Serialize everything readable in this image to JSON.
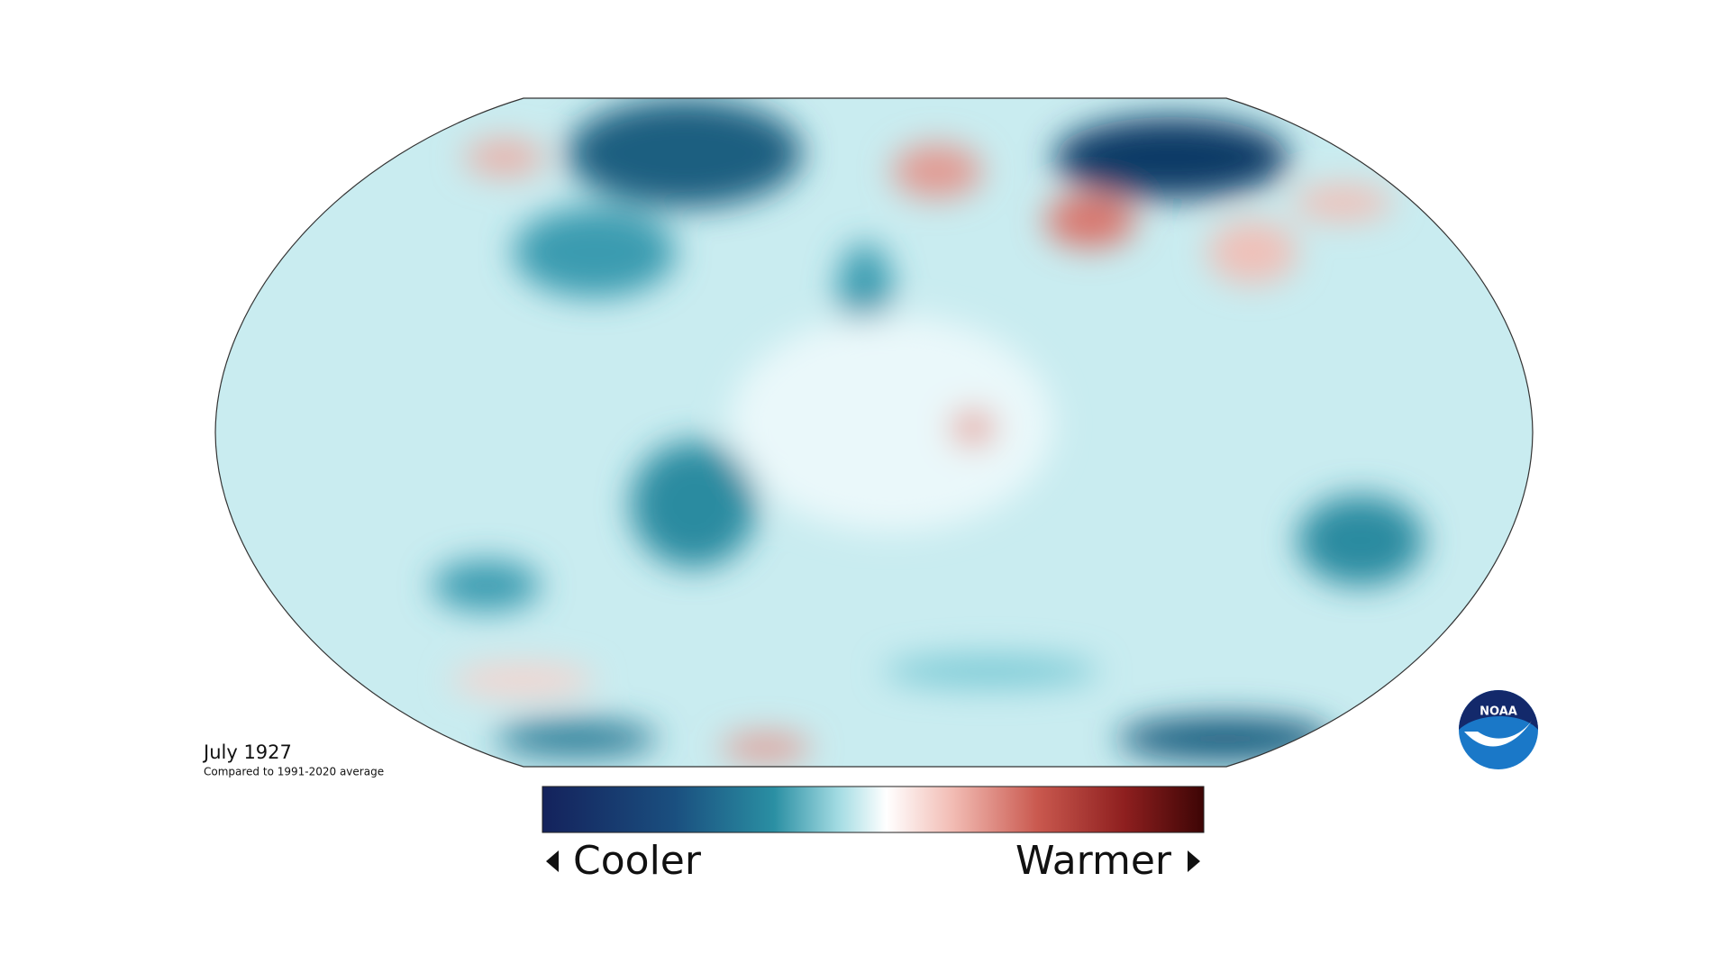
{
  "map": {
    "date": "July 1927",
    "note": "Compared to 1991-2020 average"
  },
  "legend": {
    "low_label": "Cooler",
    "high_label": "Warmer"
  },
  "logo": {
    "text": "NOAA"
  }
}
